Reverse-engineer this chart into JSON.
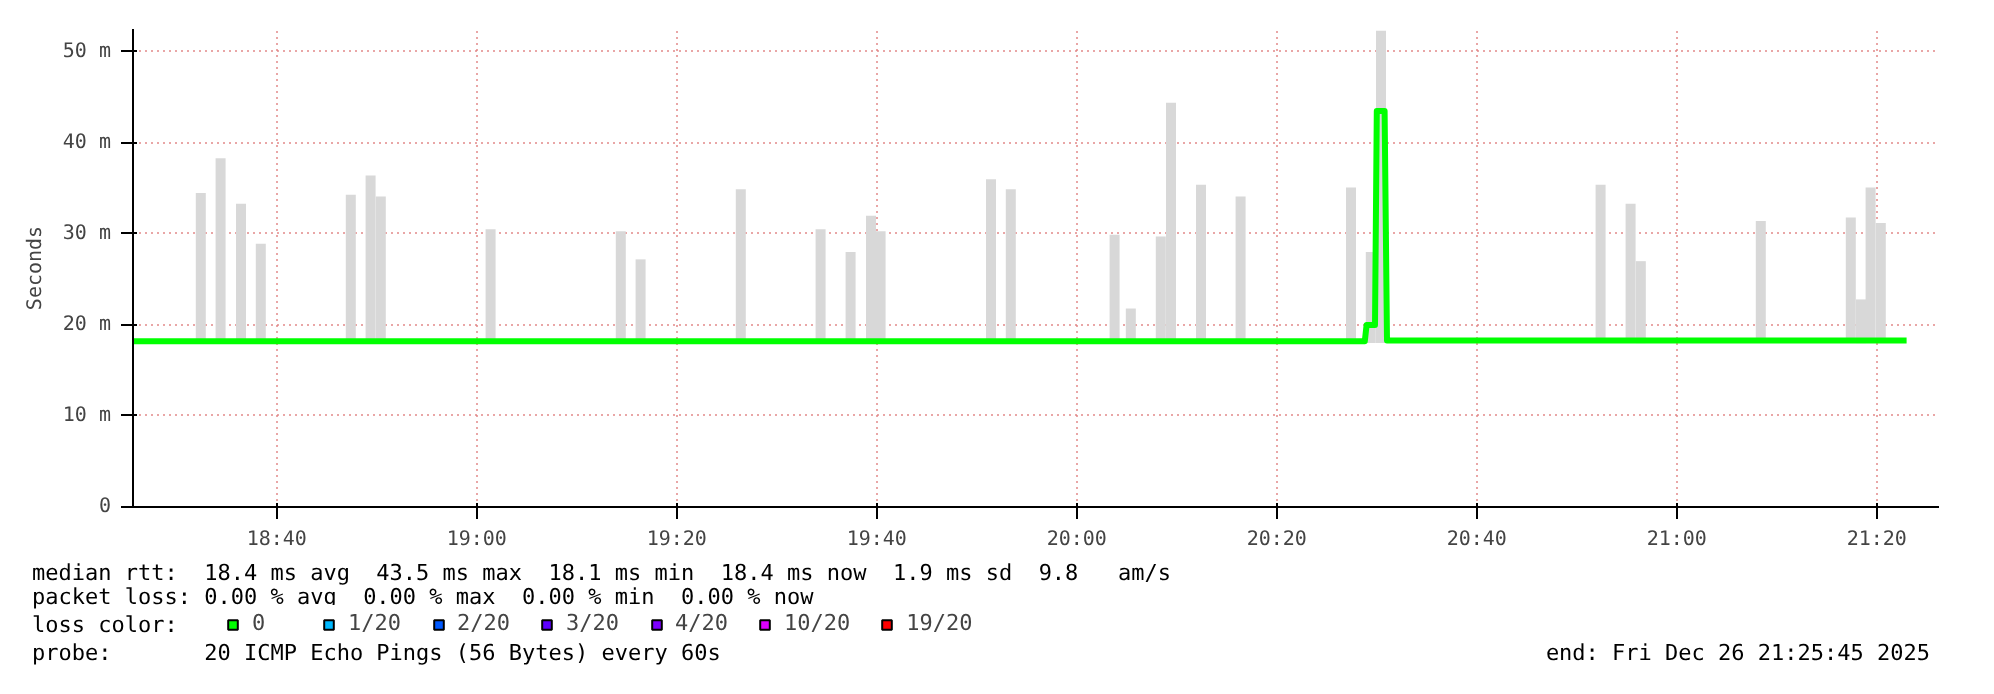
{
  "chart_data": {
    "type": "line",
    "ylabel": "Seconds",
    "legend_title": "loss color:",
    "legend": "bottom",
    "grid": true,
    "xlim": [
      18.427,
      21.437
    ],
    "ylim": [
      0,
      52.5
    ],
    "xticks": [
      {
        "value": 18.6667,
        "label": "18:40"
      },
      {
        "value": 19.0,
        "label": "19:00"
      },
      {
        "value": 19.3333,
        "label": "19:20"
      },
      {
        "value": 19.6667,
        "label": "19:40"
      },
      {
        "value": 20.0,
        "label": "20:00"
      },
      {
        "value": 20.3333,
        "label": "20:20"
      },
      {
        "value": 20.6667,
        "label": "20:40"
      },
      {
        "value": 21.0,
        "label": "21:00"
      },
      {
        "value": 21.3333,
        "label": "21:20"
      }
    ],
    "yticks": [
      {
        "value": 0,
        "label": "0"
      },
      {
        "value": 10,
        "label": "10 m"
      },
      {
        "value": 20,
        "label": "20 m"
      },
      {
        "value": 30,
        "label": "30 m"
      },
      {
        "value": 40,
        "label": "40 m"
      },
      {
        "value": 50,
        "label": "50 m"
      }
    ],
    "series": [
      {
        "type": "bar",
        "color": "#d8d8d8",
        "x": [
          18.54,
          18.573,
          18.607,
          18.64,
          18.79,
          18.823,
          18.84,
          19.023,
          19.24,
          19.273,
          19.44,
          19.573,
          19.623,
          19.657,
          19.673,
          19.857,
          19.89,
          20.063,
          20.09,
          20.14,
          20.157,
          20.207,
          20.273,
          20.457,
          20.49,
          20.507,
          20.873,
          20.923,
          20.94,
          21.14,
          21.29,
          21.307,
          21.323,
          21.34
        ],
        "base": [
          18,
          18,
          18,
          18,
          18,
          18,
          18,
          18,
          18,
          18,
          18,
          18,
          18,
          18,
          18,
          18,
          18,
          18,
          18,
          18,
          18,
          18,
          18,
          18,
          18,
          18,
          18,
          18,
          18,
          18,
          18,
          18,
          18,
          18
        ],
        "values": [
          16.5,
          20.3,
          15.3,
          10.9,
          16.3,
          18.4,
          16.1,
          12.5,
          12.3,
          9.2,
          16.9,
          12.5,
          10,
          14,
          12.3,
          18,
          16.9,
          11.9,
          3.8,
          11.7,
          26.4,
          17.4,
          16.1,
          17.1,
          10,
          34.3,
          17.4,
          15.3,
          9,
          13.4,
          13.8,
          4.8,
          17.1,
          13.2
        ]
      },
      {
        "name": "0",
        "color": "#00ff00",
        "x": [
          18.427,
          20.48,
          20.483,
          20.497,
          20.5,
          20.513,
          20.517,
          21.383
        ],
        "values": [
          18.2,
          18.2,
          20,
          20,
          43.5,
          43.5,
          18.3,
          18.3
        ]
      },
      {
        "name": "1/20",
        "color": "#00b8ff"
      },
      {
        "name": "2/20",
        "color": "#0059ff"
      },
      {
        "name": "3/20",
        "color": "#5e00ff"
      },
      {
        "name": "4/20",
        "color": "#7e00ff"
      },
      {
        "name": "10/20",
        "color": "#dd00ff"
      },
      {
        "name": "19/20",
        "color": "#ff0000"
      }
    ],
    "annotations": [
      "median rtt:  18.4 ms avg  43.5 ms max  18.1 ms min  18.4 ms now  1.9 ms sd  9.8   am/s",
      "packet loss: 0.00 % avg  0.00 % max  0.00 % min  0.00 % now",
      "probe:       20 ICMP Echo Pings (56 Bytes) every 60s",
      "end: Fri Dec 26 21:25:45 2025"
    ]
  }
}
